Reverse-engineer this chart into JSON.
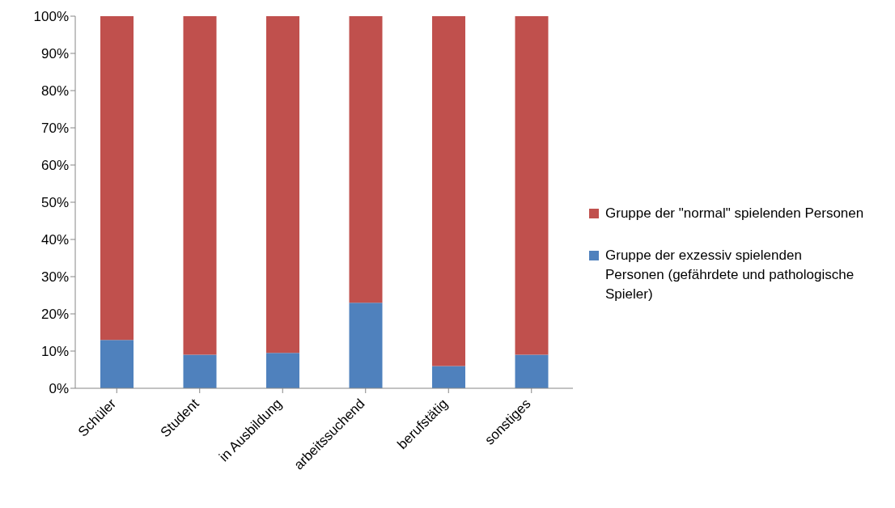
{
  "chart_data": {
    "type": "bar",
    "stacked": true,
    "categories": [
      "Schüler",
      "Student",
      "in Ausbildung",
      "arbeitssuchend",
      "berufstätig",
      "sonstiges"
    ],
    "series": [
      {
        "name": "Gruppe der exzessiv spielenden Personen (gefährdete und pathologische Spieler)",
        "color": "#4f81bd",
        "values": [
          13,
          9,
          9.5,
          23,
          6,
          9
        ]
      },
      {
        "name": "Gruppe der \"normal\" spielenden Personen",
        "color": "#c0504d",
        "values": [
          87,
          91,
          90.5,
          77,
          94,
          91
        ]
      }
    ],
    "ylim": [
      0,
      100
    ],
    "yticks": [
      {
        "value": 0,
        "label": "0%"
      },
      {
        "value": 10,
        "label": "10%"
      },
      {
        "value": 20,
        "label": "20%"
      },
      {
        "value": 30,
        "label": "30%"
      },
      {
        "value": 40,
        "label": "40%"
      },
      {
        "value": 50,
        "label": "50%"
      },
      {
        "value": 60,
        "label": "60%"
      },
      {
        "value": 70,
        "label": "70%"
      },
      {
        "value": 80,
        "label": "80%"
      },
      {
        "value": 90,
        "label": "90%"
      },
      {
        "value": 100,
        "label": "100%"
      }
    ],
    "grid": false,
    "legend": "right"
  }
}
